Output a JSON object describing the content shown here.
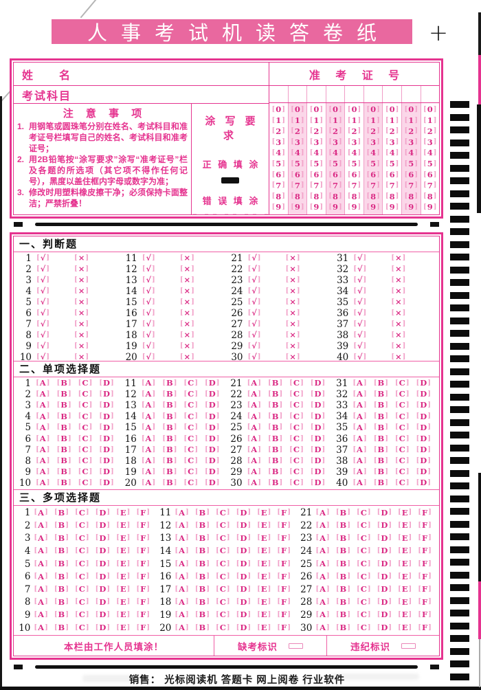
{
  "page": {
    "title": "人事考试机读答卷纸",
    "registration_mark": "+",
    "footer": "销售： 光标阅读机  答题卡  网上阅卷  行业软件"
  },
  "header": {
    "name_label": "姓　　名",
    "subject_label": "考试科目",
    "ticket_label": "准 考 证 号",
    "ticket_columns": 9,
    "shaded_columns": [
      1,
      3,
      5,
      7
    ],
    "digits": [
      "0",
      "1",
      "2",
      "3",
      "4",
      "5",
      "6",
      "7",
      "8",
      "9"
    ]
  },
  "notice": {
    "title": "注 意 事 项",
    "items": [
      {
        "num": "1.",
        "text": "用钢笔或圆珠笔分别在姓名、考试科目和准考证号栏填写自己的姓名、考试科目和准考证号；"
      },
      {
        "num": "2.",
        "text": "用2B铅笔按“涂写要求”涂写“准考证号”栏及各题的所选项（其它项不得作任何记号），黑度以盖住框内字母或数字为准；"
      },
      {
        "num": "3.",
        "text": "修改时用塑料橡皮擦干净；必须保持卡面整洁；严禁折叠！"
      }
    ]
  },
  "fill_requirements": {
    "title": "涂 写 要 求",
    "correct_label": "正 确 填 涂",
    "wrong_label": "错 误 填 涂",
    "wrong_marks": [
      "dot-left",
      "slash",
      "check",
      "cross",
      "oval",
      "triangle",
      "dash",
      "dot-center"
    ]
  },
  "sections": [
    {
      "title": "一、判断题",
      "options": [
        "√",
        "×"
      ],
      "columns": [
        [
          1,
          2,
          3,
          4,
          5,
          6,
          7,
          8,
          9,
          10
        ],
        [
          11,
          12,
          13,
          14,
          15,
          16,
          17,
          18,
          19,
          20
        ],
        [
          21,
          22,
          23,
          24,
          25,
          26,
          27,
          28,
          29,
          30
        ],
        [
          31,
          32,
          33,
          34,
          35,
          36,
          37,
          38,
          39,
          40
        ]
      ]
    },
    {
      "title": "二、单项选择题",
      "options": [
        "A",
        "B",
        "C",
        "D"
      ],
      "columns": [
        [
          1,
          2,
          3,
          4,
          5,
          6,
          7,
          8,
          9,
          10
        ],
        [
          11,
          12,
          13,
          14,
          15,
          16,
          17,
          18,
          19,
          20
        ],
        [
          21,
          22,
          23,
          24,
          25,
          26,
          27,
          28,
          29,
          30
        ],
        [
          31,
          32,
          33,
          34,
          35,
          36,
          37,
          38,
          39,
          40
        ]
      ]
    },
    {
      "title": "三、多项选择题",
      "options": [
        "A",
        "B",
        "C",
        "D",
        "E",
        "F"
      ],
      "columns": [
        [
          1,
          2,
          3,
          4,
          5,
          6,
          7,
          8,
          9,
          10
        ],
        [
          11,
          12,
          13,
          14,
          15,
          16,
          17,
          18,
          19,
          20
        ],
        [
          21,
          22,
          23,
          24,
          25,
          26,
          27,
          28,
          29,
          30
        ]
      ]
    }
  ],
  "staff_row": {
    "label": "本栏由工作人员填涂！",
    "absent_label": "缺考标识",
    "violation_label": "违纪标识"
  },
  "timing_marks": {
    "count": 46
  },
  "colors": {
    "banner": "#e9689f",
    "border": "#e5338f",
    "bubble_glyph": "#da2a84",
    "bubble_bracket": "#f2a2c9",
    "column_shade": "#fbd7e9",
    "mark_black": "#111111"
  }
}
